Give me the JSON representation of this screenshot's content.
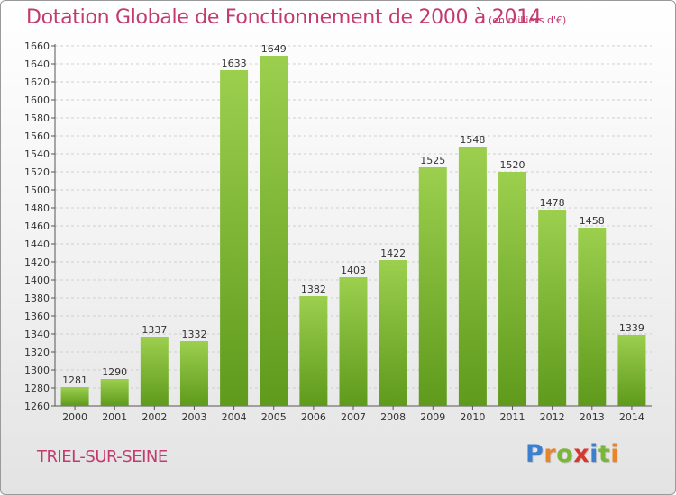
{
  "header": {
    "title": "Dotation Globale de Fonctionnement de 2000 à 2014",
    "subtitle": "(en milliers d'€)"
  },
  "footer": {
    "town": "TRIEL-SUR-SEINE",
    "logo": "Proxiti"
  },
  "colors": {
    "title": "#c23a6e",
    "bar_light": "#9ccf4e",
    "bar_dark": "#5f9a1c",
    "logo": [
      "#3b7fd1",
      "#e8842b",
      "#7ab63a",
      "#d6382f",
      "#3b7fd1",
      "#7ab63a",
      "#e8842b"
    ]
  },
  "chart_data": {
    "type": "bar",
    "title": "Dotation Globale de Fonctionnement de 2000 à 2014",
    "subtitle": "(en milliers d'€)",
    "categories": [
      "2000",
      "2001",
      "2002",
      "2003",
      "2004",
      "2005",
      "2006",
      "2007",
      "2008",
      "2009",
      "2010",
      "2011",
      "2012",
      "2013",
      "2014"
    ],
    "values": [
      1281,
      1290,
      1337,
      1332,
      1633,
      1649,
      1382,
      1403,
      1422,
      1525,
      1548,
      1520,
      1478,
      1458,
      1339
    ],
    "ylim": [
      1260,
      1660
    ],
    "ystep": 20,
    "grid": true,
    "xlabel": "",
    "ylabel": ""
  }
}
